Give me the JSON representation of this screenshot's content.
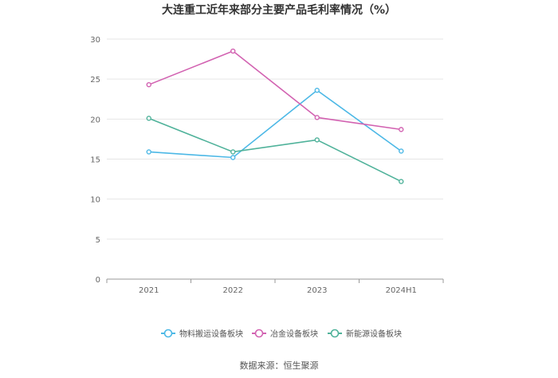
{
  "chart_data": {
    "type": "line",
    "title": "大连重工近年来部分主要产品毛利率情况（%）",
    "categories": [
      "2021",
      "2022",
      "2023",
      "2024H1"
    ],
    "ylim": [
      0,
      30
    ],
    "yticks": [
      0,
      5,
      10,
      15,
      20,
      25,
      30
    ],
    "grid": true,
    "legend_position": "bottom",
    "series": [
      {
        "name": "物料搬运设备板块",
        "color": "#4cb8e6",
        "values": [
          15.9,
          15.2,
          23.6,
          16.0
        ]
      },
      {
        "name": "冶金设备板块",
        "color": "#d262b1",
        "values": [
          24.3,
          28.5,
          20.2,
          18.7
        ]
      },
      {
        "name": "新能源设备板块",
        "color": "#4fb29a",
        "values": [
          20.1,
          15.9,
          17.4,
          12.2
        ]
      }
    ],
    "source": "数据来源：恒生聚源"
  }
}
